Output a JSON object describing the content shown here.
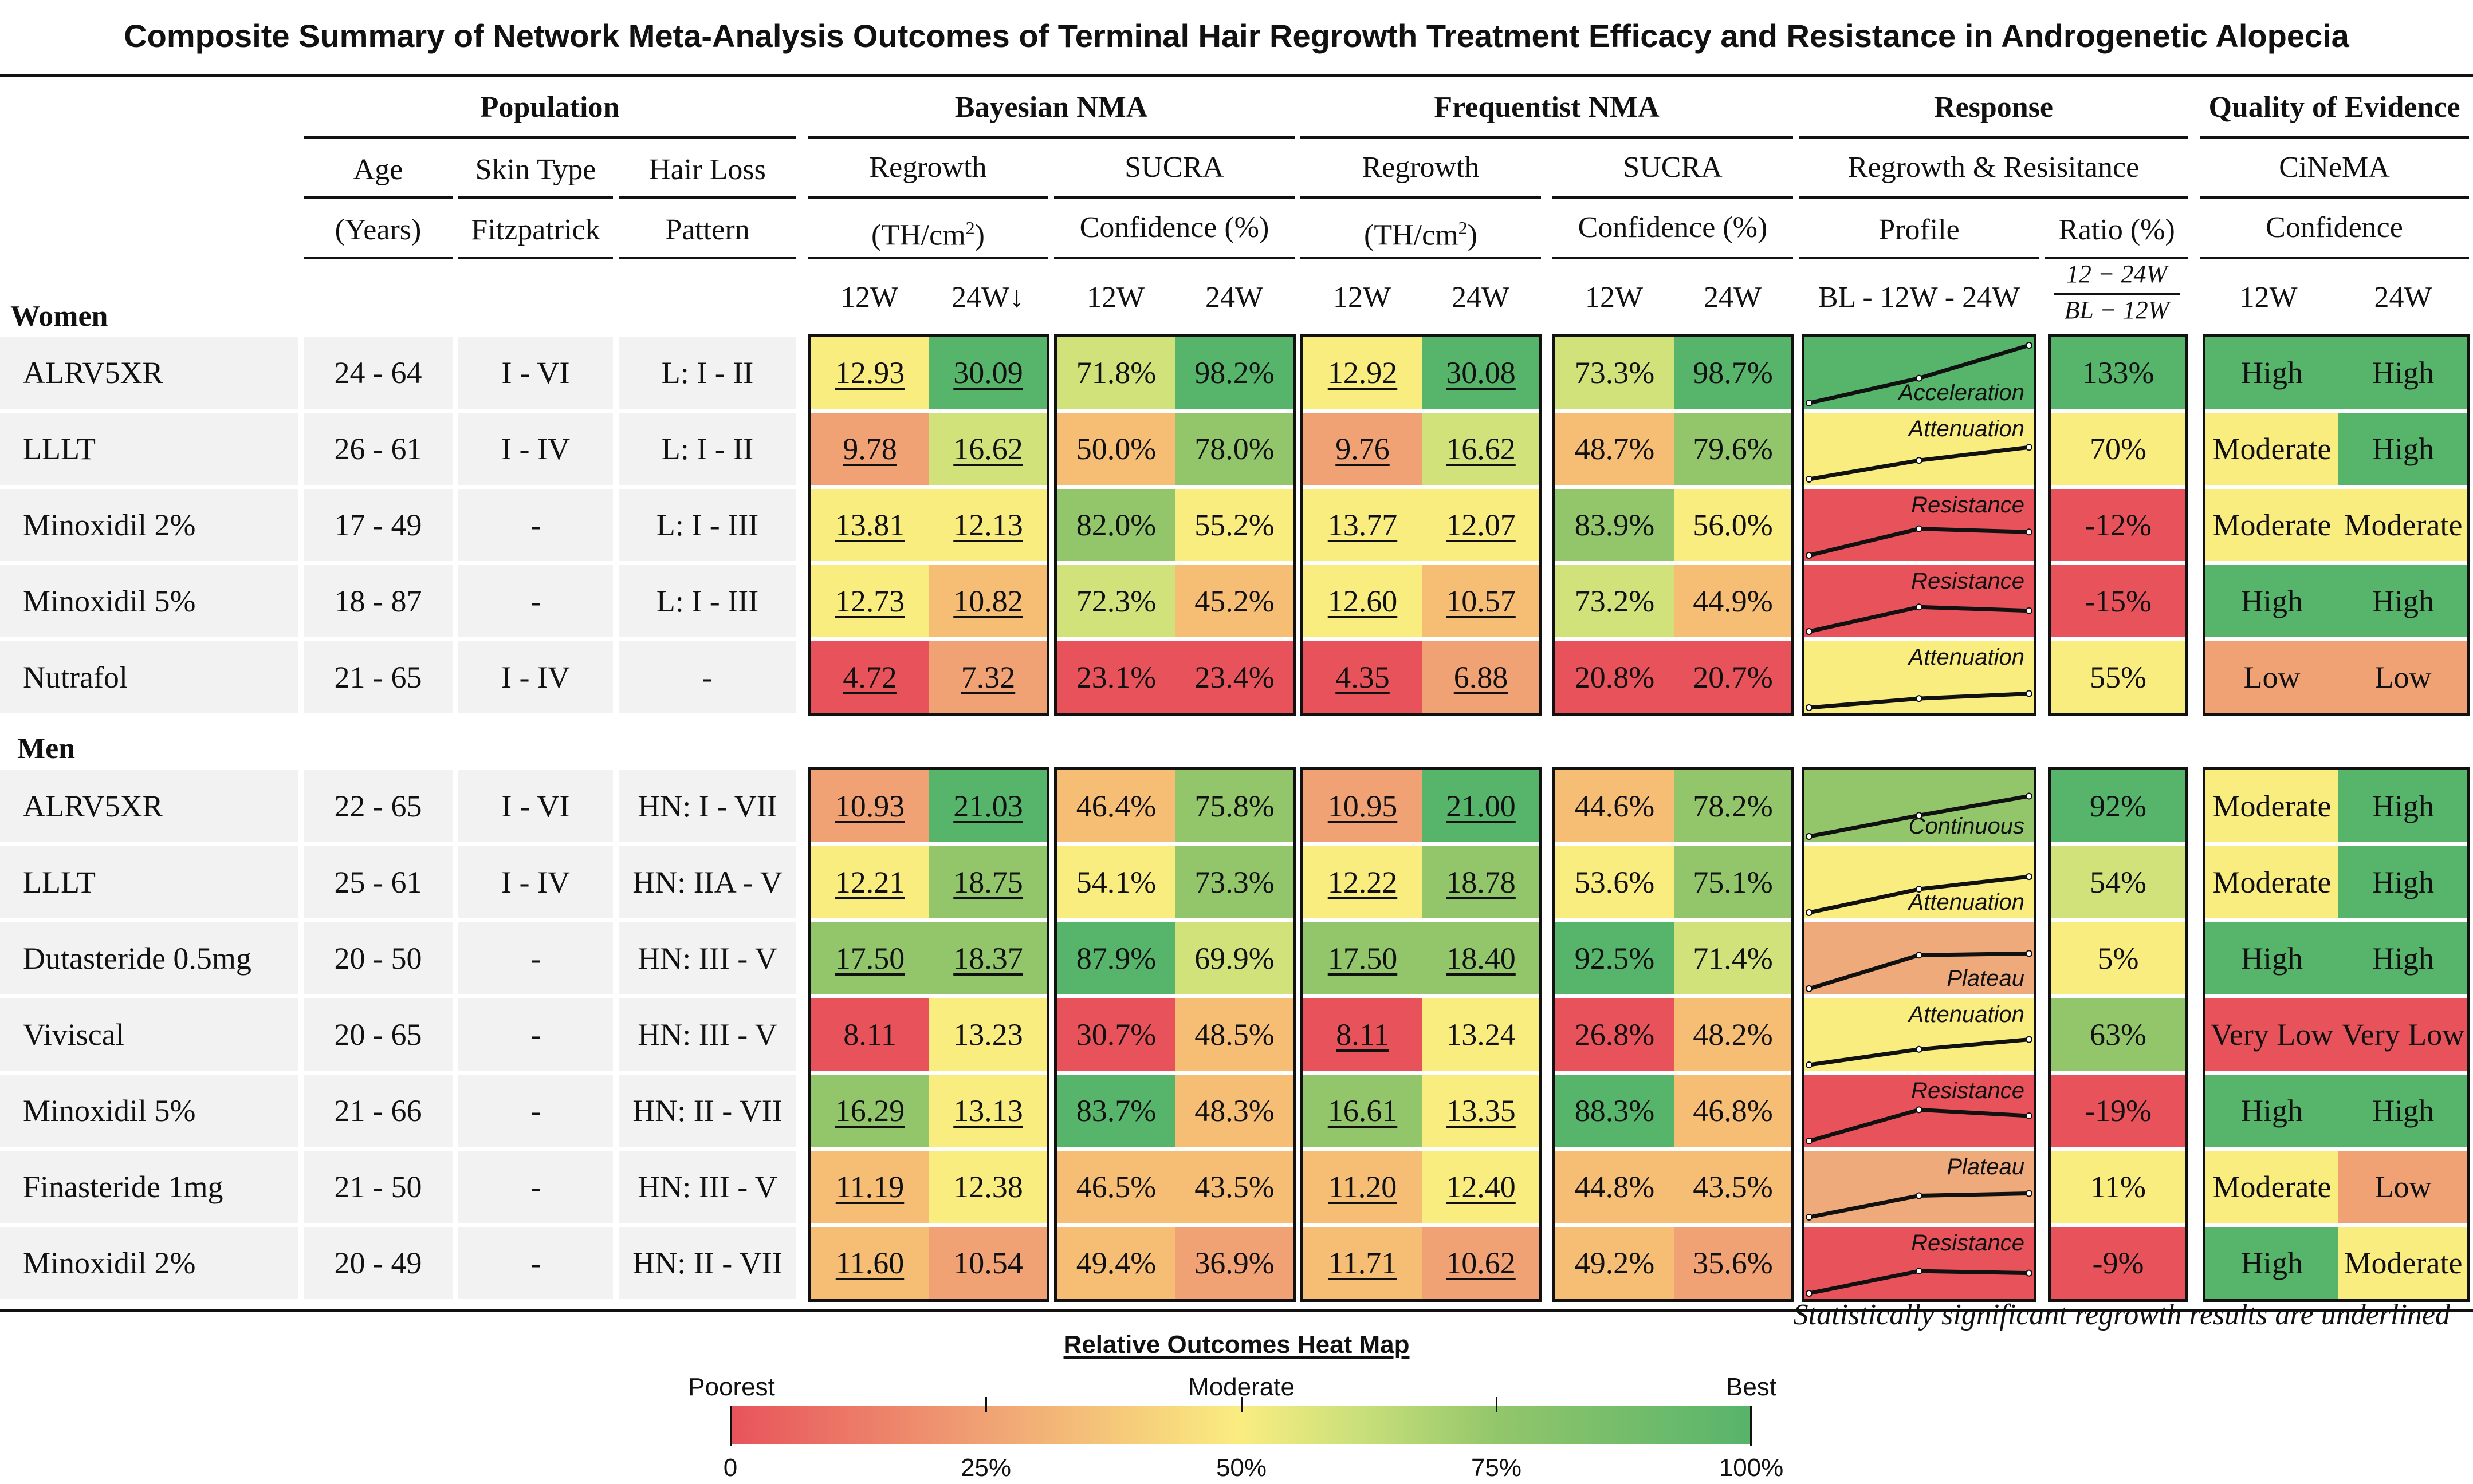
{
  "title": "Composite Summary of Network Meta-Analysis Outcomes of Terminal Hair Regrowth Treatment Efficacy and Resistance in Androgenetic Alopecia",
  "headers": {
    "population": "Population",
    "bayesian": "Bayesian NMA",
    "frequentist": "Frequentist NMA",
    "response": "Response",
    "quality": "Quality of Evidence",
    "age": [
      "Age",
      "(Years)"
    ],
    "skin": [
      "Skin Type",
      "Fitzpatrick"
    ],
    "hair": [
      "Hair Loss",
      "Pattern"
    ],
    "regrowth": "Regrowth",
    "regrowth_unit": "(TH/cm",
    "regrowth_sup": "2",
    "regrowth_close": ")",
    "sucra": [
      "SUCRA",
      "Confidence (%)"
    ],
    "response_sub": "Regrowth & Resisitance",
    "profile": "Profile",
    "ratio": "Ratio (%)",
    "cinema": [
      "CiNeMA",
      "Confidence"
    ],
    "w12": "12W",
    "w24_arrow": "24W↓",
    "w24": "24W",
    "bl": "BL - 12W - 24W",
    "frac_num": "12 − 24W",
    "frac_den": "BL − 12W"
  },
  "sections": {
    "women": "Women",
    "men": "Men"
  },
  "chart_data": {
    "type": "table",
    "title": "Composite Summary of Network Meta-Analysis Outcomes of Terminal Hair Regrowth Treatment Efficacy and Resistance in Androgenetic Alopecia",
    "colors": {
      "red": "#e8535b",
      "orange": "#f0a274",
      "yellow": "#faed80",
      "lightgreen": "#93c66b",
      "green": "#57b46b",
      "salmon": "#eeaa7a",
      "white": "#ffffff"
    },
    "women": [
      {
        "name": "ALRV5XR",
        "age": "24 - 64",
        "skin": "I - VI",
        "pattern": "L: I - II",
        "b12": "12.93",
        "b24": "30.09",
        "bs12": "71.8%",
        "bs24": "98.2%",
        "f12": "12.92",
        "f24": "30.08",
        "fs12": "73.3%",
        "fs24": "98.7%",
        "profile": "Acceleration",
        "ratio": "133%",
        "c12": "High",
        "c24": "High",
        "u": [
          1,
          1,
          1,
          1
        ],
        "trend": [
          0,
          12.93,
          30.09
        ],
        "bg": {
          "b12": "#faed80",
          "b24": "#57b46b",
          "bs12": "#d2e27b",
          "bs24": "#57b46b",
          "f12": "#faed80",
          "f24": "#57b46b",
          "fs12": "#d2e27b",
          "fs24": "#57b46b",
          "p": "#57b46b",
          "r": "#57b46b",
          "c12": "#57b46b",
          "c24": "#57b46b"
        }
      },
      {
        "name": "LLLT",
        "age": "26 - 61",
        "skin": "I - IV",
        "pattern": "L: I - II",
        "b12": "9.78",
        "b24": "16.62",
        "bs12": "50.0%",
        "bs24": "78.0%",
        "f12": "9.76",
        "f24": "16.62",
        "fs12": "48.7%",
        "fs24": "79.6%",
        "profile": "Attenuation",
        "ratio": "70%",
        "c12": "Moderate",
        "c24": "High",
        "u": [
          1,
          1,
          1,
          1
        ],
        "trend": [
          0,
          9.78,
          16.62
        ],
        "bg": {
          "b12": "#f0a274",
          "b24": "#d2e27b",
          "bs12": "#f6be74",
          "bs24": "#93c66b",
          "f12": "#f0a274",
          "f24": "#d2e27b",
          "fs12": "#f6be74",
          "fs24": "#93c66b",
          "p": "#faed80",
          "r": "#faed80",
          "c12": "#faed80",
          "c24": "#57b46b"
        }
      },
      {
        "name": "Minoxidil 2%",
        "age": "17 - 49",
        "skin": "-",
        "pattern": "L: I - III",
        "b12": "13.81",
        "b24": "12.13",
        "bs12": "82.0%",
        "bs24": "55.2%",
        "f12": "13.77",
        "f24": "12.07",
        "fs12": "83.9%",
        "fs24": "56.0%",
        "profile": "Resistance",
        "ratio": "-12%",
        "c12": "Moderate",
        "c24": "Moderate",
        "u": [
          1,
          1,
          1,
          1
        ],
        "trend": [
          0,
          13.81,
          12.13
        ],
        "bg": {
          "b12": "#faed80",
          "b24": "#faed80",
          "bs12": "#93c66b",
          "bs24": "#faed80",
          "f12": "#faed80",
          "f24": "#faed80",
          "fs12": "#93c66b",
          "fs24": "#faed80",
          "p": "#e8535b",
          "r": "#e8535b",
          "c12": "#faed80",
          "c24": "#faed80"
        }
      },
      {
        "name": "Minoxidil 5%",
        "age": "18 - 87",
        "skin": "-",
        "pattern": "L: I - III",
        "b12": "12.73",
        "b24": "10.82",
        "bs12": "72.3%",
        "bs24": "45.2%",
        "f12": "12.60",
        "f24": "10.57",
        "fs12": "73.2%",
        "fs24": "44.9%",
        "profile": "Resistance",
        "ratio": "-15%",
        "c12": "High",
        "c24": "High",
        "u": [
          1,
          1,
          1,
          1
        ],
        "trend": [
          0,
          12.73,
          10.82
        ],
        "bg": {
          "b12": "#faed80",
          "b24": "#f6be74",
          "bs12": "#d2e27b",
          "bs24": "#f6be74",
          "f12": "#faed80",
          "f24": "#f6be74",
          "fs12": "#d2e27b",
          "fs24": "#f6be74",
          "p": "#e8535b",
          "r": "#e8535b",
          "c12": "#57b46b",
          "c24": "#57b46b"
        }
      },
      {
        "name": "Nutrafol",
        "age": "21 - 65",
        "skin": "I - IV",
        "pattern": "-",
        "b12": "4.72",
        "b24": "7.32",
        "bs12": "23.1%",
        "bs24": "23.4%",
        "f12": "4.35",
        "f24": "6.88",
        "fs12": "20.8%",
        "fs24": "20.7%",
        "profile": "Attenuation",
        "ratio": "55%",
        "c12": "Low",
        "c24": "Low",
        "u": [
          1,
          1,
          1,
          1
        ],
        "trend": [
          0,
          4.72,
          7.32
        ],
        "bg": {
          "b12": "#e8535b",
          "b24": "#f0a274",
          "bs12": "#e8535b",
          "bs24": "#e8535b",
          "f12": "#e8535b",
          "f24": "#f0a274",
          "fs12": "#e8535b",
          "fs24": "#e8535b",
          "p": "#faed80",
          "r": "#faed80",
          "c12": "#f0a274",
          "c24": "#f0a274"
        }
      }
    ],
    "men": [
      {
        "name": "ALRV5XR",
        "age": "22 - 65",
        "skin": "I - VI",
        "pattern": "HN: I - VII",
        "b12": "10.93",
        "b24": "21.03",
        "bs12": "46.4%",
        "bs24": "75.8%",
        "f12": "10.95",
        "f24": "21.00",
        "fs12": "44.6%",
        "fs24": "78.2%",
        "profile": "Continuous",
        "ratio": "92%",
        "c12": "Moderate",
        "c24": "High",
        "u": [
          1,
          1,
          1,
          1
        ],
        "trend": [
          0,
          10.93,
          21.03
        ],
        "bg": {
          "b12": "#f0a274",
          "b24": "#57b46b",
          "bs12": "#f6be74",
          "bs24": "#93c66b",
          "f12": "#f0a274",
          "f24": "#57b46b",
          "fs12": "#f6be74",
          "fs24": "#93c66b",
          "p": "#93c66b",
          "r": "#57b46b",
          "c12": "#faed80",
          "c24": "#57b46b"
        }
      },
      {
        "name": "LLLT",
        "age": "25 - 61",
        "skin": "I - IV",
        "pattern": "HN: IIA - V",
        "b12": "12.21",
        "b24": "18.75",
        "bs12": "54.1%",
        "bs24": "73.3%",
        "f12": "12.22",
        "f24": "18.78",
        "fs12": "53.6%",
        "fs24": "75.1%",
        "profile": "Attenuation",
        "ratio": "54%",
        "c12": "Moderate",
        "c24": "High",
        "u": [
          1,
          1,
          1,
          1
        ],
        "trend": [
          0,
          12.21,
          18.75
        ],
        "bg": {
          "b12": "#faed80",
          "b24": "#93c66b",
          "bs12": "#faed80",
          "bs24": "#93c66b",
          "f12": "#faed80",
          "f24": "#93c66b",
          "fs12": "#faed80",
          "fs24": "#93c66b",
          "p": "#faed80",
          "r": "#d2e27b",
          "c12": "#faed80",
          "c24": "#57b46b"
        }
      },
      {
        "name": "Dutasteride 0.5mg",
        "age": "20 - 50",
        "skin": "-",
        "pattern": "HN: III - V",
        "b12": "17.50",
        "b24": "18.37",
        "bs12": "87.9%",
        "bs24": "69.9%",
        "f12": "17.50",
        "f24": "18.40",
        "fs12": "92.5%",
        "fs24": "71.4%",
        "profile": "Plateau",
        "ratio": "5%",
        "c12": "High",
        "c24": "High",
        "u": [
          1,
          1,
          1,
          1
        ],
        "trend": [
          0,
          17.5,
          18.37
        ],
        "bg": {
          "b12": "#93c66b",
          "b24": "#93c66b",
          "bs12": "#57b46b",
          "bs24": "#d2e27b",
          "f12": "#93c66b",
          "f24": "#93c66b",
          "fs12": "#57b46b",
          "fs24": "#d2e27b",
          "p": "#eeaa7a",
          "r": "#faed80",
          "c12": "#57b46b",
          "c24": "#57b46b"
        }
      },
      {
        "name": "Viviscal",
        "age": "20 - 65",
        "skin": "-",
        "pattern": "HN: III - V",
        "b12": "8.11",
        "b24": "13.23",
        "bs12": "30.7%",
        "bs24": "48.5%",
        "f12": "8.11",
        "f24": "13.24",
        "fs12": "26.8%",
        "fs24": "48.2%",
        "profile": "Attenuation",
        "ratio": "63%",
        "c12": "Very Low",
        "c24": "Very Low",
        "u": [
          0,
          0,
          1,
          0
        ],
        "trend": [
          0,
          8.11,
          13.23
        ],
        "bg": {
          "b12": "#e8535b",
          "b24": "#faed80",
          "bs12": "#e8535b",
          "bs24": "#f6be74",
          "f12": "#e8535b",
          "f24": "#faed80",
          "fs12": "#e8535b",
          "fs24": "#f6be74",
          "p": "#faed80",
          "r": "#93c66b",
          "c12": "#e8535b",
          "c24": "#e8535b"
        }
      },
      {
        "name": "Minoxidil 5%",
        "age": "21 - 66",
        "skin": "-",
        "pattern": "HN: II - VII",
        "b12": "16.29",
        "b24": "13.13",
        "bs12": "83.7%",
        "bs24": "48.3%",
        "f12": "16.61",
        "f24": "13.35",
        "fs12": "88.3%",
        "fs24": "46.8%",
        "profile": "Resistance",
        "ratio": "-19%",
        "c12": "High",
        "c24": "High",
        "u": [
          1,
          1,
          1,
          1
        ],
        "trend": [
          0,
          16.29,
          13.13
        ],
        "bg": {
          "b12": "#93c66b",
          "b24": "#faed80",
          "bs12": "#57b46b",
          "bs24": "#f6be74",
          "f12": "#93c66b",
          "f24": "#faed80",
          "fs12": "#57b46b",
          "fs24": "#f6be74",
          "p": "#e8535b",
          "r": "#e8535b",
          "c12": "#57b46b",
          "c24": "#57b46b"
        }
      },
      {
        "name": "Finasteride 1mg",
        "age": "21 - 50",
        "skin": "-",
        "pattern": "HN: III - V",
        "b12": "11.19",
        "b24": "12.38",
        "bs12": "46.5%",
        "bs24": "43.5%",
        "f12": "11.20",
        "f24": "12.40",
        "fs12": "44.8%",
        "fs24": "43.5%",
        "profile": "Plateau",
        "ratio": "11%",
        "c12": "Moderate",
        "c24": "Low",
        "u": [
          1,
          0,
          1,
          1
        ],
        "trend": [
          0,
          11.19,
          12.38
        ],
        "bg": {
          "b12": "#f6be74",
          "b24": "#faed80",
          "bs12": "#f6be74",
          "bs24": "#f6be74",
          "f12": "#f6be74",
          "f24": "#faed80",
          "fs12": "#f6be74",
          "fs24": "#f6be74",
          "p": "#eeaa7a",
          "r": "#faed80",
          "c12": "#faed80",
          "c24": "#f0a274"
        }
      },
      {
        "name": "Minoxidil 2%",
        "age": "20 - 49",
        "skin": "-",
        "pattern": "HN: II - VII",
        "b12": "11.60",
        "b24": "10.54",
        "bs12": "49.4%",
        "bs24": "36.9%",
        "f12": "11.71",
        "f24": "10.62",
        "fs12": "49.2%",
        "fs24": "35.6%",
        "profile": "Resistance",
        "ratio": "-9%",
        "c12": "High",
        "c24": "Moderate",
        "u": [
          1,
          0,
          1,
          1
        ],
        "trend": [
          0,
          11.6,
          10.54
        ],
        "bg": {
          "b12": "#f6be74",
          "b24": "#f0a274",
          "bs12": "#f6be74",
          "bs24": "#f0a274",
          "f12": "#f6be74",
          "f24": "#f0a274",
          "fs12": "#f6be74",
          "fs24": "#f0a274",
          "p": "#e8535b",
          "r": "#e8535b",
          "c12": "#57b46b",
          "c24": "#faed80"
        }
      }
    ]
  },
  "note": "Statistically significant regrowth results are underlined",
  "legend": {
    "title": "Relative Outcomes Heat Map",
    "labels": [
      "Poorest",
      "Moderate",
      "Best"
    ],
    "ticks": [
      "0",
      "25%",
      "50%",
      "75%",
      "100%"
    ]
  }
}
